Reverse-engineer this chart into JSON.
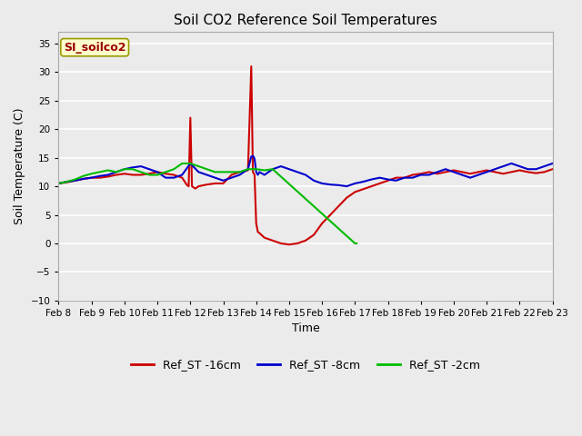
{
  "title": "Soil CO2 Reference Soil Temperatures",
  "xlabel": "Time",
  "ylabel": "Soil Temperature (C)",
  "ylim": [
    -10,
    37
  ],
  "yticks": [
    -10,
    -5,
    0,
    5,
    10,
    15,
    20,
    25,
    30,
    35
  ],
  "plot_bg_color": "#ebebeb",
  "fig_bg_color": "#ebebeb",
  "annotation_text": "SI_soilco2",
  "annotation_color": "#990000",
  "annotation_bg": "#ffffcc",
  "annotation_edge": "#999900",
  "x_labels": [
    "Feb 8",
    "Feb 9",
    "Feb 10",
    "Feb 11",
    "Feb 12",
    "Feb 13",
    "Feb 14",
    "Feb 15",
    "Feb 16",
    "Feb 17",
    "Feb 18",
    "Feb 19",
    "Feb 20",
    "Feb 21",
    "Feb 22",
    "Feb 23"
  ],
  "grid_color": "#ffffff",
  "series": {
    "Ref_ST -16cm": {
      "color": "#cc0000",
      "x": [
        0.0,
        0.25,
        0.5,
        0.75,
        1.0,
        1.25,
        1.5,
        1.75,
        2.0,
        2.25,
        2.5,
        2.75,
        3.0,
        3.25,
        3.5,
        3.75,
        3.9,
        3.95,
        4.0,
        4.05,
        4.1,
        4.15,
        4.25,
        4.5,
        4.75,
        5.0,
        5.25,
        5.5,
        5.75,
        5.85,
        5.9,
        5.95,
        6.0,
        6.05,
        6.1,
        6.25,
        6.5,
        6.75,
        7.0,
        7.25,
        7.5,
        7.75,
        8.0,
        8.25,
        8.5,
        8.75,
        9.0,
        9.25,
        9.5,
        9.75,
        10.0,
        10.25,
        10.5,
        10.75,
        11.0,
        11.25,
        11.5,
        11.75,
        12.0,
        12.25,
        12.5,
        12.75,
        13.0,
        13.25,
        13.5,
        13.75,
        14.0,
        14.25,
        14.5,
        14.75,
        15.0
      ],
      "y": [
        10.5,
        10.7,
        11.0,
        11.3,
        11.5,
        11.5,
        11.7,
        12.0,
        12.2,
        12.0,
        12.0,
        12.2,
        12.5,
        12.2,
        12.0,
        11.5,
        10.2,
        10.0,
        22.0,
        10.0,
        9.8,
        9.6,
        10.0,
        10.3,
        10.5,
        10.5,
        12.0,
        12.5,
        12.8,
        31.0,
        12.5,
        12.0,
        3.5,
        2.0,
        1.8,
        1.0,
        0.5,
        0.0,
        -0.2,
        0.0,
        0.5,
        1.5,
        3.5,
        5.0,
        6.5,
        8.0,
        9.0,
        9.5,
        10.0,
        10.5,
        11.0,
        11.5,
        11.5,
        12.0,
        12.2,
        12.5,
        12.2,
        12.5,
        12.8,
        12.5,
        12.2,
        12.5,
        12.8,
        12.5,
        12.2,
        12.5,
        12.8,
        12.5,
        12.3,
        12.5,
        13.0
      ]
    },
    "Ref_ST -8cm": {
      "color": "#0000cc",
      "x": [
        0.0,
        0.25,
        0.5,
        0.75,
        1.0,
        1.25,
        1.5,
        1.75,
        2.0,
        2.25,
        2.5,
        2.75,
        3.0,
        3.25,
        3.5,
        3.75,
        4.0,
        4.25,
        4.5,
        4.75,
        5.0,
        5.25,
        5.5,
        5.75,
        5.85,
        5.9,
        5.92,
        5.95,
        6.0,
        6.05,
        6.1,
        6.25,
        6.5,
        6.75,
        7.0,
        7.25,
        7.5,
        7.75,
        8.0,
        8.25,
        8.5,
        8.75,
        9.0,
        9.25,
        9.5,
        9.75,
        10.0,
        10.25,
        10.5,
        10.75,
        11.0,
        11.25,
        11.5,
        11.75,
        12.0,
        12.25,
        12.5,
        12.75,
        13.0,
        13.25,
        13.5,
        13.75,
        14.0,
        14.25,
        14.5,
        14.75,
        15.0
      ],
      "y": [
        10.5,
        10.8,
        11.0,
        11.3,
        11.5,
        11.8,
        12.0,
        12.5,
        13.0,
        13.3,
        13.5,
        13.0,
        12.5,
        11.5,
        11.5,
        12.0,
        14.0,
        12.5,
        12.0,
        11.5,
        11.0,
        11.5,
        12.0,
        13.0,
        15.2,
        15.3,
        15.2,
        14.8,
        12.5,
        12.0,
        12.5,
        12.0,
        13.0,
        13.5,
        13.0,
        12.5,
        12.0,
        11.0,
        10.5,
        10.3,
        10.2,
        10.0,
        10.5,
        10.8,
        11.2,
        11.5,
        11.2,
        11.0,
        11.5,
        11.5,
        12.0,
        12.0,
        12.5,
        13.0,
        12.5,
        12.0,
        11.5,
        12.0,
        12.5,
        13.0,
        13.5,
        14.0,
        13.5,
        13.0,
        13.0,
        13.5,
        14.0
      ]
    },
    "Ref_ST -2cm": {
      "color": "#00bb00",
      "x": [
        0.0,
        0.25,
        0.5,
        0.75,
        1.0,
        1.25,
        1.5,
        1.75,
        2.0,
        2.25,
        2.5,
        2.75,
        3.0,
        3.25,
        3.5,
        3.75,
        4.0,
        4.25,
        4.5,
        4.75,
        5.0,
        5.25,
        5.5,
        5.75,
        6.0,
        6.25,
        6.5,
        9.0,
        9.05
      ],
      "y": [
        10.5,
        10.8,
        11.2,
        11.8,
        12.2,
        12.5,
        12.8,
        12.5,
        13.0,
        13.0,
        12.5,
        12.0,
        12.0,
        12.5,
        13.0,
        14.0,
        14.0,
        13.5,
        13.0,
        12.5,
        12.5,
        12.5,
        12.5,
        13.0,
        13.0,
        12.8,
        13.0,
        0.0,
        0.0
      ]
    }
  }
}
